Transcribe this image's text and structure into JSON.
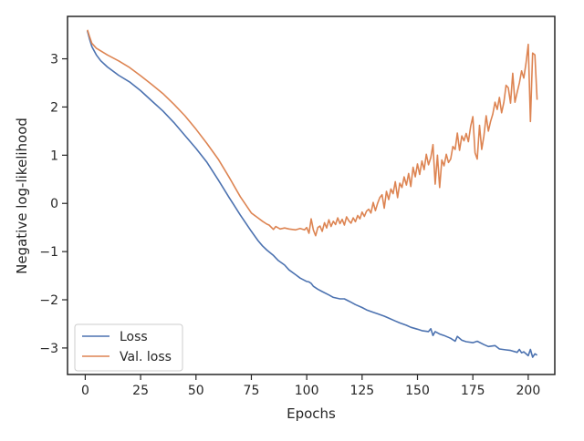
{
  "chart_data": {
    "type": "line",
    "title": "",
    "xlabel": "Epochs",
    "ylabel": "Negative log-likelihood",
    "xlim": [
      -8,
      212
    ],
    "ylim": [
      -3.55,
      3.88
    ],
    "xticks": [
      0,
      25,
      50,
      75,
      100,
      125,
      150,
      175,
      200
    ],
    "yticks": [
      -3,
      -2,
      -1,
      0,
      1,
      2,
      3
    ],
    "xtick_labels": [
      "0",
      "25",
      "50",
      "75",
      "100",
      "125",
      "150",
      "175",
      "200"
    ],
    "ytick_labels": [
      "−3",
      "−2",
      "−1",
      "0",
      "1",
      "2",
      "3"
    ],
    "grid": false,
    "legend_position": "lower-left",
    "series": [
      {
        "name": "Loss",
        "color": "#4c72b0",
        "x": [
          1,
          2,
          3,
          5,
          7,
          10,
          15,
          20,
          25,
          30,
          35,
          40,
          45,
          50,
          55,
          60,
          65,
          70,
          75,
          78,
          80,
          82,
          85,
          87,
          90,
          92,
          95,
          97,
          100,
          101,
          102,
          103,
          105,
          107,
          110,
          112,
          115,
          117,
          120,
          122,
          125,
          127,
          130,
          132,
          135,
          137,
          140,
          142,
          145,
          147,
          150,
          152,
          155,
          156,
          157,
          158,
          160,
          162,
          165,
          167,
          168,
          170,
          172,
          175,
          177,
          180,
          182,
          185,
          187,
          190,
          192,
          195,
          196,
          197,
          198,
          200,
          201,
          202,
          203,
          204
        ],
        "values": [
          3.58,
          3.4,
          3.25,
          3.08,
          2.96,
          2.83,
          2.66,
          2.52,
          2.34,
          2.13,
          1.92,
          1.68,
          1.41,
          1.14,
          0.85,
          0.49,
          0.12,
          -0.24,
          -0.58,
          -0.77,
          -0.88,
          -0.97,
          -1.08,
          -1.18,
          -1.28,
          -1.38,
          -1.48,
          -1.55,
          -1.62,
          -1.63,
          -1.66,
          -1.72,
          -1.78,
          -1.83,
          -1.9,
          -1.95,
          -1.98,
          -1.98,
          -2.05,
          -2.1,
          -2.16,
          -2.21,
          -2.26,
          -2.29,
          -2.34,
          -2.38,
          -2.44,
          -2.48,
          -2.53,
          -2.57,
          -2.61,
          -2.64,
          -2.66,
          -2.6,
          -2.74,
          -2.66,
          -2.71,
          -2.74,
          -2.8,
          -2.86,
          -2.76,
          -2.84,
          -2.87,
          -2.89,
          -2.86,
          -2.93,
          -2.97,
          -2.95,
          -3.02,
          -3.04,
          -3.05,
          -3.09,
          -3.03,
          -3.1,
          -3.08,
          -3.16,
          -3.03,
          -3.19,
          -3.12,
          -3.15
        ]
      },
      {
        "name": "Val. loss",
        "color": "#dd8452",
        "x": [
          1,
          2,
          3,
          5,
          10,
          15,
          20,
          25,
          30,
          35,
          40,
          45,
          50,
          55,
          60,
          65,
          70,
          75,
          78,
          80,
          82,
          83,
          85,
          86,
          88,
          90,
          92,
          95,
          97,
          99,
          100,
          101,
          102,
          103,
          104,
          105,
          106,
          107,
          108,
          109,
          110,
          111,
          112,
          113,
          114,
          115,
          116,
          117,
          118,
          119,
          120,
          121,
          122,
          123,
          124,
          125,
          126,
          127,
          128,
          129,
          130,
          131,
          132,
          133,
          134,
          135,
          136,
          137,
          138,
          139,
          140,
          141,
          142,
          143,
          144,
          145,
          146,
          147,
          148,
          149,
          150,
          151,
          152,
          153,
          154,
          155,
          156,
          157,
          158,
          159,
          160,
          161,
          162,
          163,
          164,
          165,
          166,
          167,
          168,
          169,
          170,
          171,
          172,
          173,
          174,
          175,
          176,
          177,
          178,
          179,
          180,
          181,
          182,
          183,
          184,
          185,
          186,
          187,
          188,
          189,
          190,
          191,
          192,
          193,
          194,
          195,
          196,
          197,
          198,
          199,
          200,
          201,
          202,
          203,
          204
        ],
        "values": [
          3.6,
          3.45,
          3.32,
          3.22,
          3.08,
          2.96,
          2.82,
          2.65,
          2.47,
          2.28,
          2.06,
          1.82,
          1.54,
          1.24,
          0.92,
          0.54,
          0.14,
          -0.2,
          -0.3,
          -0.37,
          -0.43,
          -0.45,
          -0.54,
          -0.48,
          -0.53,
          -0.51,
          -0.53,
          -0.55,
          -0.52,
          -0.55,
          -0.5,
          -0.62,
          -0.32,
          -0.55,
          -0.67,
          -0.5,
          -0.47,
          -0.58,
          -0.4,
          -0.51,
          -0.34,
          -0.48,
          -0.37,
          -0.44,
          -0.3,
          -0.42,
          -0.33,
          -0.45,
          -0.28,
          -0.36,
          -0.41,
          -0.3,
          -0.38,
          -0.25,
          -0.32,
          -0.18,
          -0.27,
          -0.16,
          -0.12,
          -0.2,
          0.02,
          -0.15,
          0.0,
          0.12,
          0.18,
          -0.1,
          0.25,
          0.08,
          0.3,
          0.2,
          0.45,
          0.12,
          0.42,
          0.33,
          0.55,
          0.38,
          0.62,
          0.35,
          0.75,
          0.55,
          0.82,
          0.6,
          0.88,
          0.7,
          1.02,
          0.8,
          0.95,
          1.22,
          0.4,
          1.0,
          0.33,
          0.9,
          0.78,
          1.02,
          0.85,
          0.92,
          1.18,
          1.12,
          1.46,
          1.1,
          1.4,
          1.3,
          1.45,
          1.28,
          1.6,
          1.8,
          1.05,
          0.92,
          1.62,
          1.12,
          1.4,
          1.82,
          1.5,
          1.7,
          1.85,
          2.1,
          1.95,
          2.2,
          1.88,
          2.1,
          2.45,
          2.4,
          2.08,
          2.7,
          2.1,
          2.3,
          2.5,
          2.75,
          2.6,
          2.9,
          3.3,
          1.7,
          3.12,
          3.08,
          2.15
        ]
      }
    ]
  }
}
